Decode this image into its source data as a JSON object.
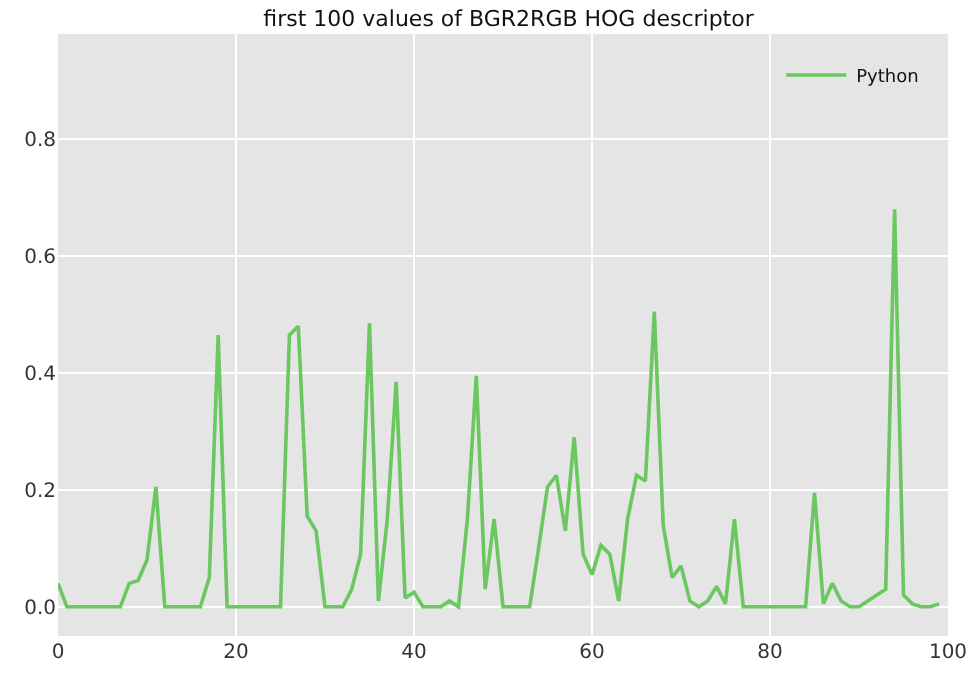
{
  "chart_data": {
    "type": "line",
    "title": "first 100 values of BGR2RGB HOG descriptor",
    "x": [
      0,
      1,
      2,
      3,
      4,
      5,
      6,
      7,
      8,
      9,
      10,
      11,
      12,
      13,
      14,
      15,
      16,
      17,
      18,
      19,
      20,
      21,
      22,
      23,
      24,
      25,
      26,
      27,
      28,
      29,
      30,
      31,
      32,
      33,
      34,
      35,
      36,
      37,
      38,
      39,
      40,
      41,
      42,
      43,
      44,
      45,
      46,
      47,
      48,
      49,
      50,
      51,
      52,
      53,
      54,
      55,
      56,
      57,
      58,
      59,
      60,
      61,
      62,
      63,
      64,
      65,
      66,
      67,
      68,
      69,
      70,
      71,
      72,
      73,
      74,
      75,
      76,
      77,
      78,
      79,
      80,
      81,
      82,
      83,
      84,
      85,
      86,
      87,
      88,
      89,
      90,
      91,
      92,
      93,
      94,
      95,
      96,
      97,
      98,
      99
    ],
    "series": [
      {
        "name": "Python",
        "color": "#6bc760",
        "values": [
          0.04,
          0,
          0,
          0,
          0,
          0,
          0,
          0,
          0.04,
          0.045,
          0.08,
          0.205,
          0,
          0,
          0,
          0,
          0,
          0.05,
          0.465,
          0,
          0,
          0,
          0,
          0,
          0,
          0,
          0.465,
          0.48,
          0.155,
          0.13,
          0,
          0,
          0,
          0.03,
          0.09,
          0.485,
          0.01,
          0.15,
          0.385,
          0.015,
          0.025,
          0,
          0,
          0,
          0.01,
          0,
          0.15,
          0.395,
          0.03,
          0.15,
          0,
          0,
          0,
          0,
          0.1,
          0.205,
          0.225,
          0.13,
          0.29,
          0.09,
          0.055,
          0.105,
          0.09,
          0.01,
          0.15,
          0.225,
          0.215,
          0.505,
          0.14,
          0.05,
          0.07,
          0.01,
          0,
          0.01,
          0.035,
          0.005,
          0.15,
          0,
          0,
          0,
          0,
          0,
          0,
          0,
          0,
          0.195,
          0.005,
          0.04,
          0.01,
          0,
          0,
          0.01,
          0.02,
          0.03,
          0.68,
          0.02,
          0.005,
          0,
          0,
          0.005
        ]
      }
    ],
    "xlim": [
      0,
      100
    ],
    "xticks": [
      0,
      20,
      40,
      60,
      80,
      100
    ],
    "ylim": [
      -0.05,
      0.98
    ],
    "yticks": [
      {
        "value": 0,
        "label": "0.0"
      },
      {
        "value": 0.2,
        "label": "0.2"
      },
      {
        "value": 0.4,
        "label": "0.4"
      },
      {
        "value": 0.6,
        "label": "0.6"
      },
      {
        "value": 0.8,
        "label": "0.8"
      }
    ],
    "grid": true,
    "legend": "top right",
    "line_style": "solid",
    "marker": "none"
  }
}
